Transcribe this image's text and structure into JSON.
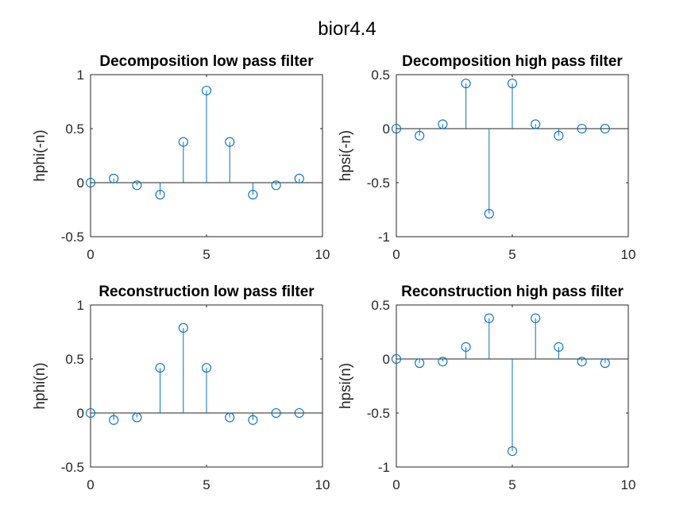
{
  "figure_title": "bior4.4",
  "chart_data": [
    {
      "type": "stem",
      "title": "Decomposition low pass filter",
      "ylabel": "hphi(-n)",
      "xlim": [
        0,
        10
      ],
      "ylim": [
        -0.5,
        1
      ],
      "xticks": [
        "0",
        "5",
        "10"
      ],
      "yticks": [
        "-0.5",
        "0",
        "0.5",
        "1"
      ],
      "x": [
        0,
        1,
        2,
        3,
        4,
        5,
        6,
        7,
        8,
        9
      ],
      "y": [
        0,
        0.038,
        -0.024,
        -0.111,
        0.377,
        0.853,
        0.377,
        -0.111,
        -0.024,
        0.038
      ],
      "color": "#0072BD"
    },
    {
      "type": "stem",
      "title": "Decomposition high pass filter",
      "ylabel": "hpsi(-n)",
      "xlim": [
        0,
        10
      ],
      "ylim": [
        -1,
        0.5
      ],
      "xticks": [
        "0",
        "5",
        "10"
      ],
      "yticks": [
        "-1",
        "-0.5",
        "0",
        "0.5"
      ],
      "x": [
        0,
        1,
        2,
        3,
        4,
        5,
        6,
        7,
        8,
        9
      ],
      "y": [
        0,
        -0.065,
        0.041,
        0.418,
        -0.788,
        0.418,
        0.041,
        -0.065,
        0,
        0
      ],
      "color": "#0072BD"
    },
    {
      "type": "stem",
      "title": "Reconstruction low pass filter",
      "ylabel": "hphi(n)",
      "xlim": [
        0,
        10
      ],
      "ylim": [
        -0.5,
        1
      ],
      "xticks": [
        "0",
        "5",
        "10"
      ],
      "yticks": [
        "-0.5",
        "0",
        "0.5",
        "1"
      ],
      "x": [
        0,
        1,
        2,
        3,
        4,
        5,
        6,
        7,
        8,
        9
      ],
      "y": [
        0,
        -0.065,
        -0.041,
        0.418,
        0.788,
        0.418,
        -0.041,
        -0.065,
        0,
        0
      ],
      "color": "#0072BD"
    },
    {
      "type": "stem",
      "title": "Reconstruction high pass filter",
      "ylabel": "hpsi(n)",
      "xlim": [
        0,
        10
      ],
      "ylim": [
        -1,
        0.5
      ],
      "xticks": [
        "0",
        "5",
        "10"
      ],
      "yticks": [
        "-1",
        "-0.5",
        "0",
        "0.5"
      ],
      "x": [
        0,
        1,
        2,
        3,
        4,
        5,
        6,
        7,
        8,
        9
      ],
      "y": [
        0,
        -0.038,
        -0.024,
        0.111,
        0.377,
        -0.853,
        0.377,
        0.111,
        -0.024,
        -0.038
      ],
      "color": "#0072BD"
    }
  ]
}
